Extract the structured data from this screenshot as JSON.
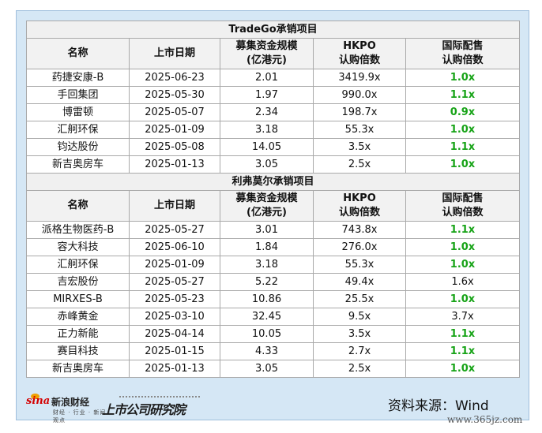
{
  "tradego_section": {
    "title": "TradeGo承销项目",
    "headers": [
      "名称",
      "上市日期",
      "募集资金规模",
      "(亿港元)",
      "HKPO",
      "认购倍数",
      "国际配售",
      "认购倍数"
    ],
    "rows": [
      {
        "name": "药捷安康-B",
        "date": "2025-06-23",
        "size": "2.01",
        "hkpo": "3419.9x",
        "intl": "1.0x"
      },
      {
        "name": "手回集团",
        "date": "2025-05-30",
        "size": "1.97",
        "hkpo": "990.0x",
        "intl": "1.1x"
      },
      {
        "name": "博雷顿",
        "date": "2025-05-07",
        "size": "2.34",
        "hkpo": "198.7x",
        "intl": "0.9x"
      },
      {
        "name": "汇舸环保",
        "date": "2025-01-09",
        "size": "3.18",
        "hkpo": "55.3x",
        "intl": "1.0x"
      },
      {
        "name": "钧达股份",
        "date": "2025-05-08",
        "size": "14.05",
        "hkpo": "3.5x",
        "intl": "1.1x"
      },
      {
        "name": "新吉奥房车",
        "date": "2025-01-13",
        "size": "3.05",
        "hkpo": "2.5x",
        "intl": "1.0x"
      }
    ]
  },
  "liferm_section": {
    "title": "利弗莫尔承销项目",
    "headers": [
      "名称",
      "上市日期",
      "募集资金规模",
      "(亿港元)",
      "HKPO",
      "认购倍数",
      "国际配售",
      "认购倍数"
    ],
    "rows": [
      {
        "name": "派格生物医药-B",
        "date": "2025-05-27",
        "size": "3.01",
        "hkpo": "743.8x",
        "intl": "1.1x"
      },
      {
        "name": "容大科技",
        "date": "2025-06-10",
        "size": "1.84",
        "hkpo": "276.0x",
        "intl": "1.0x"
      },
      {
        "name": "汇舸环保",
        "date": "2025-01-09",
        "size": "3.18",
        "hkpo": "55.3x",
        "intl": "1.0x"
      },
      {
        "name": "吉宏股份",
        "date": "2025-05-27",
        "size": "5.22",
        "hkpo": "49.4x",
        "intl": "1.6x"
      },
      {
        "name": "MIRXES-B",
        "date": "2025-05-23",
        "size": "10.86",
        "hkpo": "25.5x",
        "intl": "1.0x"
      },
      {
        "name": "赤峰黄金",
        "date": "2025-03-10",
        "size": "32.45",
        "hkpo": "9.5x",
        "intl": "3.7x"
      },
      {
        "name": "正力新能",
        "date": "2025-04-14",
        "size": "10.05",
        "hkpo": "3.5x",
        "intl": "1.1x"
      },
      {
        "name": "赛目科技",
        "date": "2025-01-15",
        "size": "4.33",
        "hkpo": "2.7x",
        "intl": "1.1x"
      },
      {
        "name": "新吉奥房车",
        "date": "2025-01-13",
        "size": "3.05",
        "hkpo": "2.5x",
        "intl": "1.0x"
      }
    ]
  },
  "colors": {
    "highlight_green": "#17a317",
    "frame_blue": "#d5e7f5",
    "brand_red": "#d40000"
  },
  "footer": {
    "sina_logo": "sina",
    "sina_name": "新浪财经",
    "sina_tagline": "财经 · 行业 · 新闻 · 观点",
    "institute_name": "上市公司研究院",
    "source_text": "资料来源：Wind"
  },
  "watermark": "www.365jz.com"
}
